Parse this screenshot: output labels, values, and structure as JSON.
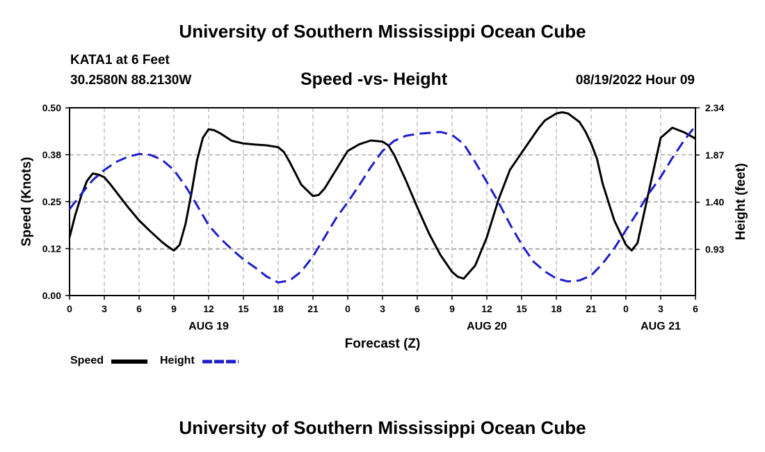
{
  "header": {
    "title_top": "University of Southern Mississippi Ocean Cube",
    "station": "KATA1 at 6 Feet",
    "coords": "30.2580N  88.2130W",
    "chart_title": "Speed -vs- Height",
    "timestamp": "08/19/2022 Hour 09",
    "title_bottom": "University of Southern Mississippi Ocean Cube"
  },
  "legend": {
    "speed_label": "Speed",
    "height_label": "Height"
  },
  "colors": {
    "speed": "#000000",
    "height": "#1c1ccc",
    "grid": "#b0b0b0"
  },
  "chart_data": {
    "type": "line",
    "title": "Speed -vs- Height",
    "xlabel": "Forecast (Z)",
    "ylabel_left": "Speed (Knots)",
    "ylabel_right": "Height (feet)",
    "x_unit": "hours from Aug 19 00Z",
    "xlim": [
      0,
      54
    ],
    "ylim_left": [
      0,
      0.5
    ],
    "ylim_right": [
      0.47,
      2.34
    ],
    "left_ticks": [
      0,
      0.125,
      0.25,
      0.375,
      0.5
    ],
    "left_tick_labels": [
      "0.00",
      "0.12",
      "0.25",
      "0.38",
      "0.50"
    ],
    "right_ticks": [
      0.93,
      1.4,
      1.87,
      2.34
    ],
    "right_tick_labels": [
      "0.93",
      "1.40",
      "1.87",
      "2.34"
    ],
    "x_ticks": [
      0,
      3,
      6,
      9,
      12,
      15,
      18,
      21,
      24,
      27,
      30,
      33,
      36,
      39,
      42,
      45,
      48,
      51,
      54
    ],
    "x_tick_labels": [
      "0",
      "3",
      "6",
      "9",
      "12",
      "15",
      "18",
      "21",
      "0",
      "3",
      "6",
      "9",
      "12",
      "15",
      "18",
      "21",
      "0",
      "3",
      "6"
    ],
    "date_labels": [
      {
        "text": "AUG 19",
        "x": 12
      },
      {
        "text": "AUG 20",
        "x": 36
      },
      {
        "text": "AUG 21",
        "x": 51
      }
    ],
    "grid": true,
    "series": [
      {
        "name": "Speed",
        "axis": "left",
        "style": "solid",
        "x": [
          0,
          0.5,
          1,
          1.5,
          2,
          2.5,
          3,
          3.5,
          4,
          5,
          6,
          7,
          8,
          8.5,
          9,
          9.5,
          10,
          10.5,
          11,
          11.5,
          12,
          12.5,
          13,
          14,
          15,
          16,
          17,
          18,
          18.5,
          19,
          20,
          21,
          21.5,
          22,
          23,
          24,
          25,
          26,
          27,
          27.5,
          28,
          29,
          30,
          31,
          32,
          33,
          33.5,
          34,
          35,
          36,
          37,
          38,
          39,
          40,
          40.5,
          41,
          42,
          42.5,
          43,
          44,
          44.5,
          45,
          45.5,
          46,
          47,
          48,
          48.5,
          49,
          50,
          51,
          52,
          53,
          54
        ],
        "values": [
          0.155,
          0.215,
          0.265,
          0.305,
          0.325,
          0.322,
          0.315,
          0.297,
          0.277,
          0.237,
          0.2,
          0.17,
          0.142,
          0.13,
          0.12,
          0.135,
          0.19,
          0.27,
          0.36,
          0.42,
          0.443,
          0.44,
          0.432,
          0.412,
          0.405,
          0.402,
          0.4,
          0.395,
          0.382,
          0.355,
          0.295,
          0.265,
          0.268,
          0.285,
          0.335,
          0.385,
          0.403,
          0.413,
          0.41,
          0.4,
          0.375,
          0.308,
          0.235,
          0.166,
          0.108,
          0.063,
          0.05,
          0.045,
          0.08,
          0.155,
          0.255,
          0.335,
          0.38,
          0.425,
          0.447,
          0.466,
          0.485,
          0.488,
          0.485,
          0.462,
          0.437,
          0.405,
          0.365,
          0.297,
          0.2,
          0.135,
          0.12,
          0.14,
          0.28,
          0.42,
          0.447,
          0.435,
          0.418
        ]
      },
      {
        "name": "Height",
        "axis": "right",
        "style": "dashed",
        "x": [
          0,
          1,
          2,
          3,
          4,
          5,
          6,
          7,
          8,
          9,
          10,
          11,
          12,
          13,
          14,
          15,
          16,
          17,
          18,
          19,
          20,
          21,
          22,
          23,
          24,
          25,
          26,
          27,
          28,
          29,
          30,
          31,
          32,
          33,
          34,
          35,
          36,
          37,
          38,
          39,
          40,
          41,
          42,
          43,
          44,
          45,
          46,
          47,
          48,
          49,
          50,
          51,
          52,
          53,
          54
        ],
        "values": [
          1.33,
          1.48,
          1.62,
          1.72,
          1.8,
          1.85,
          1.88,
          1.87,
          1.82,
          1.72,
          1.56,
          1.37,
          1.17,
          1.04,
          0.93,
          0.83,
          0.75,
          0.66,
          0.6,
          0.62,
          0.71,
          0.86,
          1.05,
          1.24,
          1.4,
          1.57,
          1.75,
          1.91,
          2.01,
          2.06,
          2.08,
          2.09,
          2.1,
          2.07,
          1.98,
          1.8,
          1.6,
          1.4,
          1.18,
          0.98,
          0.81,
          0.71,
          0.64,
          0.61,
          0.62,
          0.67,
          0.79,
          0.94,
          1.12,
          1.3,
          1.49,
          1.65,
          1.84,
          2.01,
          2.16
        ]
      }
    ]
  },
  "chart_x_label": "Forecast (Z)"
}
